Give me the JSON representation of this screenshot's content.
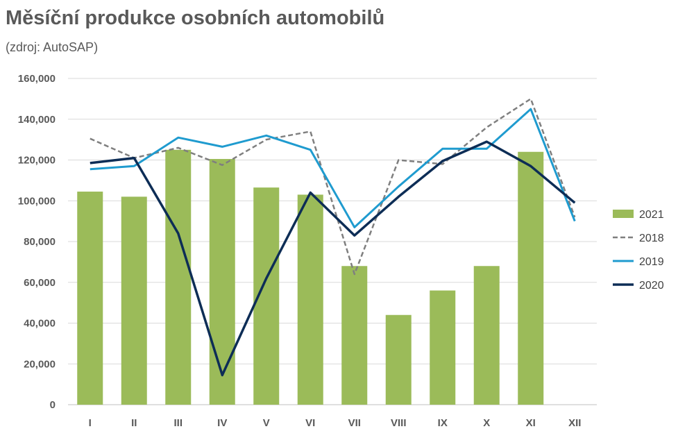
{
  "chart_data": {
    "type": "bar",
    "title": "Měsíční produkce osobních automobilů",
    "subtitle": "(zdroj: AutoSAP)",
    "categories": [
      "I",
      "II",
      "III",
      "IV",
      "V",
      "VI",
      "VII",
      "VIII",
      "IX",
      "X",
      "XI",
      "XII"
    ],
    "ylim": [
      0,
      160000
    ],
    "yticks": [
      0,
      20000,
      40000,
      60000,
      80000,
      100000,
      120000,
      140000,
      160000
    ],
    "ytick_labels": [
      "0",
      "20,000",
      "40,000",
      "60,000",
      "80,000",
      "100,000",
      "120,000",
      "140,000",
      "160,000"
    ],
    "grid": true,
    "legend_position": "right",
    "series": [
      {
        "name": "2021",
        "kind": "bar",
        "color": "#9bbb59",
        "values": [
          104500,
          102000,
          125000,
          120500,
          106500,
          103000,
          68000,
          44000,
          56000,
          68000,
          124000,
          null
        ]
      },
      {
        "name": "2018",
        "kind": "line",
        "style": "dashed",
        "color": "#7f7f7f",
        "values": [
          130500,
          121000,
          126000,
          117500,
          130000,
          134000,
          64000,
          120000,
          118000,
          136000,
          150000,
          92000
        ]
      },
      {
        "name": "2019",
        "kind": "line",
        "style": "solid",
        "color": "#1f9bcf",
        "values": [
          115500,
          117000,
          131000,
          126500,
          132000,
          125000,
          87000,
          107000,
          125500,
          125500,
          145000,
          90000
        ]
      },
      {
        "name": "2020",
        "kind": "line",
        "style": "solid",
        "color": "#0d2d56",
        "values": [
          118500,
          121000,
          84000,
          14500,
          62000,
          104000,
          83000,
          102000,
          119500,
          129000,
          117000,
          99000
        ]
      }
    ]
  }
}
